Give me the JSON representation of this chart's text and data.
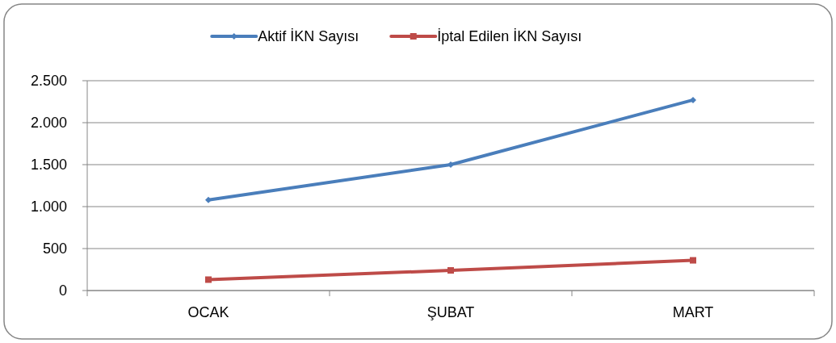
{
  "chart_data": {
    "type": "line",
    "categories": [
      "OCAK",
      "ŞUBAT",
      "MART"
    ],
    "series": [
      {
        "name": "Aktif İKN Sayısı",
        "color": "#4a7ebb",
        "values": [
          1080,
          1500,
          2270
        ],
        "marker": "diamond"
      },
      {
        "name": "İptal Edilen İKN Sayısı",
        "color": "#be4b48",
        "values": [
          130,
          240,
          360
        ],
        "marker": "square"
      }
    ],
    "ylim": [
      0,
      2500
    ],
    "yticks": [
      {
        "value": 0,
        "label": "0"
      },
      {
        "value": 500,
        "label": "500"
      },
      {
        "value": 1000,
        "label": "1.000"
      },
      {
        "value": 1500,
        "label": "1.500"
      },
      {
        "value": 2000,
        "label": "2.000"
      },
      {
        "value": 2500,
        "label": "2.500"
      }
    ],
    "grid": "y",
    "legend": "top",
    "line_style": "solid"
  }
}
